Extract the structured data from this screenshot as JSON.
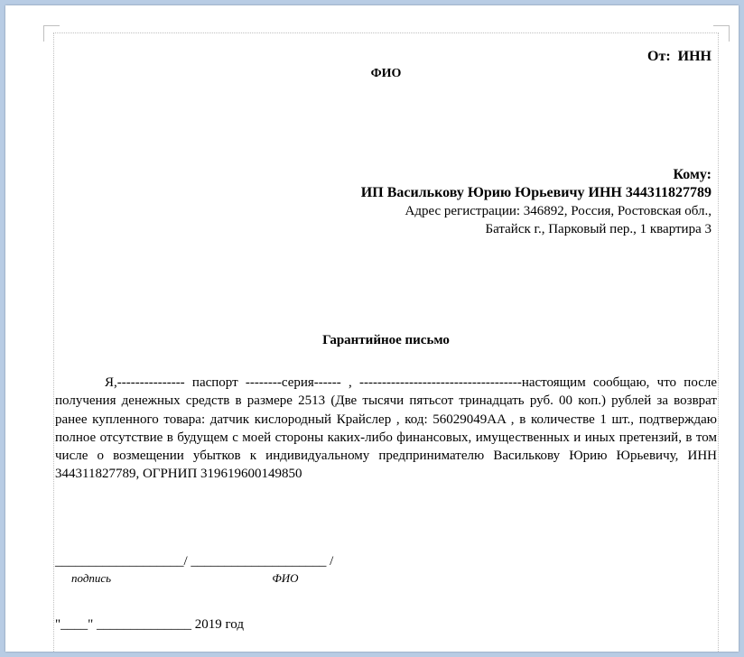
{
  "header": {
    "from_label": "От:",
    "from_value": "ИНН",
    "fio_center": "ФИО",
    "to_label": "Кому:",
    "recipient": "ИП Василькову Юрию Юрьевичу ИНН 344311827789",
    "address_line1": "Адрес регистрации: 346892, Россия, Ростовская обл.,",
    "address_line2": "Батайск г., Парковый пер., 1 квартира 3"
  },
  "document": {
    "title": "Гарантийное письмо",
    "body": "Я,--------------- паспорт --------серия------ , ------------------------------------настоящим сообщаю, что после получения денежных средств в размере 2513 (Две тысячи пятьсот тринадцать руб. 00 коп.) рублей за возврат ранее купленного товара: датчик кислородный Крайслер , код: 56029049AA , в количестве 1 шт., подтверждаю полное отсутствие в будущем с моей стороны каких-либо финансовых, имущественных и иных претензий, в том числе о возмещении убытков к индивидуальному предпринимателю Василькову Юрию Юрьевичу, ИНН 344311827789, ОГРНИП 319619600149850"
  },
  "signature": {
    "line": "___________________/ ____________________ /",
    "label_signature": "подпись",
    "label_fio": "ФИО"
  },
  "date": {
    "line": "\"____\" ______________ 2019 год"
  },
  "styling": {
    "page_bg": "#b8cce4",
    "paper_bg": "#ffffff",
    "border_color": "#c0c0c0",
    "text_color": "#000000",
    "font_family": "Times New Roman",
    "title_fontsize": 15,
    "body_fontsize": 15,
    "header_bold_fontsize": 16
  }
}
